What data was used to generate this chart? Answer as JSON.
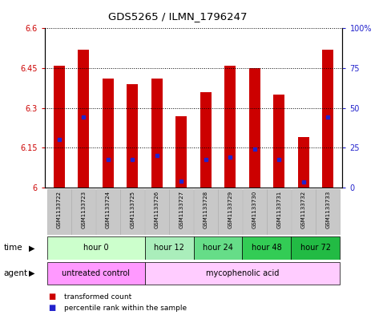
{
  "title": "GDS5265 / ILMN_1796247",
  "samples": [
    "GSM1133722",
    "GSM1133723",
    "GSM1133724",
    "GSM1133725",
    "GSM1133726",
    "GSM1133727",
    "GSM1133728",
    "GSM1133729",
    "GSM1133730",
    "GSM1133731",
    "GSM1133732",
    "GSM1133733"
  ],
  "bar_tops": [
    6.46,
    6.52,
    6.41,
    6.39,
    6.41,
    6.27,
    6.36,
    6.46,
    6.45,
    6.35,
    6.19,
    6.52
  ],
  "blue_marks": [
    6.18,
    6.265,
    6.105,
    6.105,
    6.12,
    6.025,
    6.105,
    6.115,
    6.145,
    6.105,
    6.02,
    6.265
  ],
  "bar_bottom": 6.0,
  "ylim_left": [
    6.0,
    6.6
  ],
  "ylim_right": [
    0,
    100
  ],
  "yticks_left": [
    6.0,
    6.15,
    6.3,
    6.45,
    6.6
  ],
  "ytick_labels_left": [
    "6",
    "6.15",
    "6.3",
    "6.45",
    "6.6"
  ],
  "yticks_right": [
    0,
    25,
    50,
    75,
    100
  ],
  "ytick_labels_right": [
    "0",
    "25",
    "50",
    "75",
    "100%"
  ],
  "bar_color": "#cc0000",
  "blue_color": "#2222cc",
  "time_groups": [
    {
      "label": "hour 0",
      "start": 0,
      "end": 3,
      "color": "#ccffcc"
    },
    {
      "label": "hour 12",
      "start": 4,
      "end": 5,
      "color": "#aaeebb"
    },
    {
      "label": "hour 24",
      "start": 6,
      "end": 7,
      "color": "#66dd88"
    },
    {
      "label": "hour 48",
      "start": 8,
      "end": 9,
      "color": "#33cc55"
    },
    {
      "label": "hour 72",
      "start": 10,
      "end": 11,
      "color": "#22bb44"
    }
  ],
  "agent_groups": [
    {
      "label": "untreated control",
      "start": 0,
      "end": 3,
      "color": "#ff99ff"
    },
    {
      "label": "mycophenolic acid",
      "start": 4,
      "end": 11,
      "color": "#ffccff"
    }
  ],
  "legend_red_label": "transformed count",
  "legend_blue_label": "percentile rank within the sample",
  "panel_bg": "#c8c8c8",
  "fig_bg": "#ffffff"
}
